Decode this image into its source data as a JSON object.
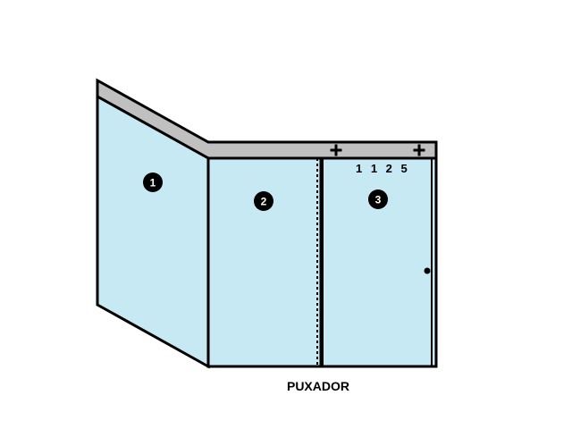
{
  "colors": {
    "glass": "#c6e9f3",
    "rail": "#c0c0c0",
    "outline": "#000000",
    "badge": "#000000",
    "badge_text": "#ffffff"
  },
  "panels": [
    {
      "id": "1",
      "badge": "1"
    },
    {
      "id": "2",
      "badge": "2"
    },
    {
      "id": "3",
      "badge": "3"
    }
  ],
  "door_code": "1 1 2 5",
  "caption": "PUXADOR",
  "icons": {
    "fixing_screw": "plus-icon",
    "handle": "dot-icon"
  }
}
